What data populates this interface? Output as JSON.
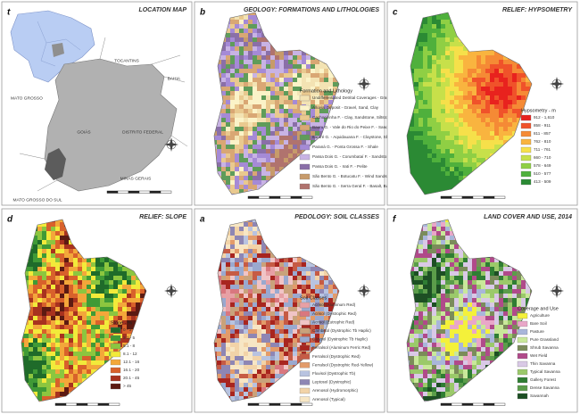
{
  "panels": [
    {
      "letter": "t",
      "title": "LOCATION MAP",
      "states": [
        "TOCANTINS",
        "BAHIA",
        "MATO GROSSO",
        "GOIÁS",
        "DISTRITO FEDERAL",
        "MINAS GERAIS",
        "MATO GROSSO DO SUL"
      ]
    },
    {
      "letter": "b",
      "title": "GEOLOGY: FORMATIONS AND LITHOLOGIES",
      "legend": {
        "title": "Formation and Lithology",
        "items": [
          {
            "label": "Undifferentiated Detrital Coverages - Gravel, Sand, Clay",
            "color": "#f3e3b3"
          },
          {
            "label": "Alluvial Deposit - Gravel, Sand, Clay",
            "color": "#fbf3c8"
          },
          {
            "label": "Cachoeirinha F. - Clay, Sandstone, Siltstone",
            "color": "#e9c98f"
          },
          {
            "label": "Bauru G. - Vale do Rio do Peixe F. - Sandstone, Claystone",
            "color": "#d9a774"
          },
          {
            "label": "Itararé G. - Aquidauana F. - Claystone, Shale, Sandstone, Siltite",
            "color": "#5f9c5a"
          },
          {
            "label": "Paraná G. - Ponta Grossa F. - Shale",
            "color": "#a58ad6"
          },
          {
            "label": "Passa Dois G. - Corumbataí F. - Sandstone, Siltstone",
            "color": "#c8b3e4"
          },
          {
            "label": "Passa Dois G. - Irati F. - Pelite",
            "color": "#8a6fa8"
          },
          {
            "label": "São Bento G. - Botucatu F. - Wind Sandstone",
            "color": "#c79b6a"
          },
          {
            "label": "São Bento G. - Serra Geral F. - Basalt, Basalt-Andesite",
            "color": "#b0736e"
          }
        ]
      }
    },
    {
      "letter": "c",
      "title": "RELIEF: HYPSOMETRY",
      "legend": {
        "title": "Hypsometry - m",
        "items": [
          {
            "label": "912 - 1,610",
            "color": "#e8221e"
          },
          {
            "label": "858 - 911",
            "color": "#f0522a"
          },
          {
            "label": "811 - 857",
            "color": "#f58a35"
          },
          {
            "label": "762 - 810",
            "color": "#f9b43f"
          },
          {
            "label": "711 - 761",
            "color": "#f6e04a"
          },
          {
            "label": "660 - 710",
            "color": "#c7e04a"
          },
          {
            "label": "578 - 649",
            "color": "#8fcf44"
          },
          {
            "label": "510 - 577",
            "color": "#4fb03c"
          },
          {
            "label": "413 - 509",
            "color": "#2b8a34"
          }
        ]
      }
    },
    {
      "letter": "d",
      "title": "RELIEF: SLOPE",
      "legend": {
        "title": "Slope - %",
        "items": [
          {
            "label": "0 - 3",
            "color": "#1f6b2a"
          },
          {
            "label": "3.1 - 5",
            "color": "#3f9a36"
          },
          {
            "label": "5.1 - 8",
            "color": "#8cc63f"
          },
          {
            "label": "8.1 - 12",
            "color": "#f2ea3a"
          },
          {
            "label": "12.1 - 16",
            "color": "#f3a73a"
          },
          {
            "label": "16.1 - 20",
            "color": "#d8612b"
          },
          {
            "label": "20.1 - 45",
            "color": "#a8321f"
          },
          {
            "label": "> 45",
            "color": "#5c1a12"
          }
        ]
      }
    },
    {
      "letter": "a",
      "title": "PEDOLOGY: SOIL CLASSES",
      "legend": {
        "title": "Soil Classes",
        "items": [
          {
            "label": "Acrisol (Aluminum Red)",
            "color": "#e7a0a5"
          },
          {
            "label": "Acrisol (Dystrophic Red)",
            "color": "#d9777f"
          },
          {
            "label": "Acrisol (Eutrophic Red)",
            "color": "#f0c4c6"
          },
          {
            "label": "Cambisol (Dystrophic Tb Haplic)",
            "color": "#c9a27b"
          },
          {
            "label": "Gleysol (Dystrophic Tb Haplic)",
            "color": "#9aa9cf"
          },
          {
            "label": "Ferralsol (Aluminum Ferric Red)",
            "color": "#a8251f"
          },
          {
            "label": "Ferralsol (Dystrophic Red)",
            "color": "#c65b45"
          },
          {
            "label": "Ferralsol (Dystrophic Red-Yellow)",
            "color": "#e39b6a"
          },
          {
            "label": "Fluvisol (Dystrophic Tb)",
            "color": "#b8c3e0"
          },
          {
            "label": "Leptosol (Dystrophic)",
            "color": "#8e86b4"
          },
          {
            "label": "Arenosol (Hydromorphic)",
            "color": "#f2d3a8"
          },
          {
            "label": "Arenosol (Typical)",
            "color": "#f7e6c4"
          }
        ]
      }
    },
    {
      "letter": "f",
      "title": "LAND COVER AND USE, 2014",
      "legend": {
        "title": "Coverage and Use",
        "items": [
          {
            "label": "Agriculture",
            "color": "#f4f13a"
          },
          {
            "label": "Bare Soil",
            "color": "#e9a7c8"
          },
          {
            "label": "Pasture",
            "color": "#a9b6da"
          },
          {
            "label": "Pure Grassland",
            "color": "#c9e89a"
          },
          {
            "label": "Shrub Savanna",
            "color": "#7b8c5a"
          },
          {
            "label": "Wet Field",
            "color": "#b04a8a"
          },
          {
            "label": "Thin Savanna",
            "color": "#d9c9e6"
          },
          {
            "label": "Typical Savanna",
            "color": "#9bc96a"
          },
          {
            "label": "Gallery Forest",
            "color": "#2f7d33"
          },
          {
            "label": "Dense Savanna",
            "color": "#5b9d4a"
          },
          {
            "label": "Savannah",
            "color": "#1d4f24"
          }
        ]
      }
    }
  ]
}
